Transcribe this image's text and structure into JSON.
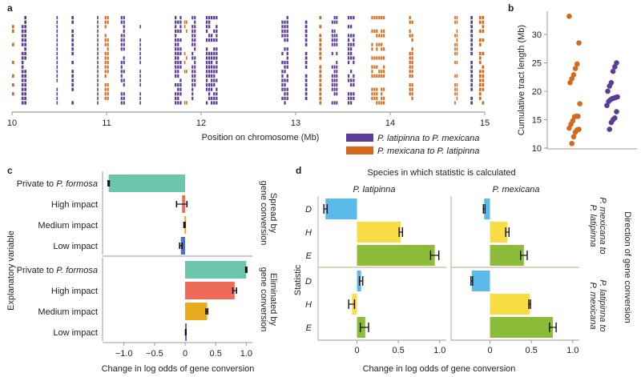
{
  "colors": {
    "purple": "#5b3c97",
    "orange": "#d4691b",
    "axis": "#999999",
    "teal": "#6cc6ae",
    "salmon": "#f06b55",
    "gold": "#e8ab1f",
    "blue": "#4f6fc2",
    "sky": "#5bbbe8",
    "yellow": "#f8dc44",
    "green": "#8dbb3a",
    "frame": "#c8b89a"
  },
  "chart_data": [
    {
      "panel": "a",
      "type": "heatmap",
      "title": "",
      "xlabel": "Position on chromosome (Mb)",
      "ylabel": "",
      "xlim": [
        10,
        15
      ],
      "xticks": [
        "10",
        "11",
        "12",
        "13",
        "14",
        "15"
      ],
      "rows": 20,
      "legend": {
        "placement": "bottom-right",
        "entries": [
          {
            "label": "P. latipinna to P. mexicana",
            "color_key": "purple"
          },
          {
            "label": "P. mexicana to P. latipinna",
            "color_key": "orange"
          }
        ]
      },
      "tracts": [
        {
          "start": 10.0,
          "end": 10.03,
          "dir": "orange",
          "rows": "sparse"
        },
        {
          "start": 10.1,
          "end": 10.16,
          "dir": "purple",
          "rows": "all"
        },
        {
          "start": 10.47,
          "end": 10.49,
          "dir": "purple",
          "rows": "all"
        },
        {
          "start": 10.63,
          "end": 10.66,
          "dir": "purple",
          "rows": "most"
        },
        {
          "start": 10.9,
          "end": 10.92,
          "dir": "purple",
          "rows": "most"
        },
        {
          "start": 10.98,
          "end": 11.03,
          "dir": "orange",
          "rows": "all"
        },
        {
          "start": 11.15,
          "end": 11.2,
          "dir": "purple",
          "rows": "most"
        },
        {
          "start": 11.35,
          "end": 11.37,
          "dir": "purple",
          "rows": "most"
        },
        {
          "start": 11.72,
          "end": 11.8,
          "dir": "purple",
          "rows": "all"
        },
        {
          "start": 11.82,
          "end": 11.86,
          "dir": "orange",
          "rows": "sparse"
        },
        {
          "start": 11.9,
          "end": 11.95,
          "dir": "purple",
          "rows": "all"
        },
        {
          "start": 12.05,
          "end": 12.18,
          "dir": "purple",
          "rows": "most"
        },
        {
          "start": 12.85,
          "end": 12.93,
          "dir": "purple",
          "rows": "all"
        },
        {
          "start": 13.1,
          "end": 13.13,
          "dir": "purple",
          "rows": "most"
        },
        {
          "start": 13.25,
          "end": 13.28,
          "dir": "orange",
          "rows": "most"
        },
        {
          "start": 13.38,
          "end": 13.45,
          "dir": "purple",
          "rows": "most"
        },
        {
          "start": 13.55,
          "end": 13.63,
          "dir": "purple",
          "rows": "most"
        },
        {
          "start": 13.8,
          "end": 13.95,
          "dir": "orange",
          "rows": "most"
        },
        {
          "start": 14.2,
          "end": 14.25,
          "dir": "orange",
          "rows": "most"
        },
        {
          "start": 14.68,
          "end": 14.72,
          "dir": "orange",
          "rows": "most"
        },
        {
          "start": 14.85,
          "end": 14.88,
          "dir": "purple",
          "rows": "most"
        },
        {
          "start": 14.94,
          "end": 15.0,
          "dir": "orange",
          "rows": "most"
        }
      ]
    },
    {
      "panel": "b",
      "type": "scatter",
      "title": "",
      "xlabel": "",
      "ylabel": "Cumulative tract length (Mb)",
      "ylim": [
        10,
        34
      ],
      "yticks": [
        "10",
        "15",
        "20",
        "25",
        "30"
      ],
      "series": [
        {
          "name": "P. mexicana to P. latipinna",
          "color_key": "orange",
          "values": [
            33.2,
            28.5,
            24.8,
            24.0,
            22.9,
            22.2,
            21.5,
            17.8,
            15.6,
            15.6,
            15.5,
            14.8,
            14.2,
            13.5,
            13.3,
            13.2,
            12.8,
            12.0,
            10.8
          ]
        },
        {
          "name": "P. latipinna to P. mexicana",
          "color_key": "purple",
          "values": [
            25.0,
            24.3,
            23.5,
            21.5,
            20.9,
            20.0,
            19.0,
            18.9,
            18.8,
            18.7,
            18.5,
            18.2,
            17.5,
            16.4,
            15.3,
            15.0,
            14.5,
            13.3
          ]
        }
      ]
    },
    {
      "panel": "c",
      "type": "bar",
      "orientation": "horizontal",
      "xlabel": "Change in log odds of gene conversion",
      "ylabel": "Explanatory variable",
      "xlim": [
        -1.35,
        1.1
      ],
      "xticks": [
        "−1.0",
        "−0.5",
        "0",
        "0.5",
        "1.0"
      ],
      "facets": [
        {
          "label": "Spread by gene conversion",
          "categories": [
            "Private to P. formosa",
            "High impact",
            "Medium impact",
            "Low impact"
          ],
          "values": [
            -1.25,
            -0.05,
            -0.01,
            -0.07
          ],
          "err_low": [
            -1.26,
            -0.14,
            -0.02,
            -0.09
          ],
          "err_high": [
            -1.24,
            0.03,
            0.0,
            -0.05
          ],
          "color_keys": [
            "teal",
            "salmon",
            "gold",
            "blue"
          ]
        },
        {
          "label": "Eliminated by gene conversion",
          "categories": [
            "Private to P. formosa",
            "High impact",
            "Medium impact",
            "Low impact"
          ],
          "values": [
            1.0,
            0.81,
            0.36,
            0.01
          ],
          "err_low": [
            0.99,
            0.78,
            0.34,
            0.005
          ],
          "err_high": [
            1.01,
            0.84,
            0.37,
            0.015
          ],
          "color_keys": [
            "teal",
            "salmon",
            "gold",
            "blue"
          ]
        }
      ]
    },
    {
      "panel": "d",
      "type": "bar",
      "orientation": "horizontal",
      "title": "Species in which statistic is calculated",
      "xlabel": "Change in log odds of gene conversion",
      "ylabel": "Statistic",
      "right_label": "Direction of gene conversion",
      "xlim": [
        -0.47,
        1.08
      ],
      "xticks": [
        "0",
        "0.5",
        "1.0"
      ],
      "columns": [
        "P. latipinna",
        "P. mexicana"
      ],
      "rows": [
        "P. mexicana to P. latipinna",
        "P. latipinna to P. mexicana"
      ],
      "categories": [
        "D",
        "H",
        "E"
      ],
      "color_keys": [
        "sky",
        "yellow",
        "green"
      ],
      "cells": [
        {
          "row": 0,
          "col": 0,
          "values": [
            -0.38,
            0.53,
            0.94
          ],
          "err_low": [
            -0.4,
            0.51,
            0.89
          ],
          "err_high": [
            -0.36,
            0.55,
            0.99
          ]
        },
        {
          "row": 0,
          "col": 1,
          "values": [
            -0.07,
            0.21,
            0.41
          ],
          "err_low": [
            -0.08,
            0.19,
            0.37
          ],
          "err_high": [
            -0.06,
            0.23,
            0.45
          ]
        },
        {
          "row": 1,
          "col": 0,
          "values": [
            0.05,
            -0.06,
            0.1
          ],
          "err_low": [
            0.03,
            -0.1,
            0.04
          ],
          "err_high": [
            0.07,
            -0.03,
            0.14
          ]
        },
        {
          "row": 1,
          "col": 1,
          "values": [
            -0.22,
            0.48,
            0.76
          ],
          "err_low": [
            -0.23,
            0.47,
            0.72
          ],
          "err_high": [
            -0.21,
            0.49,
            0.8
          ]
        }
      ]
    }
  ],
  "labels": {
    "a": "a",
    "b": "b",
    "c": "c",
    "d": "d",
    "c_facet1_line1": "Spread by",
    "c_facet1_line2": "gene conversion",
    "c_facet2_line1": "Eliminated by",
    "c_facet2_line2": "gene conversion",
    "d_row1_line1": "P. mexicana to",
    "d_row1_line2": "P. latipinna",
    "d_row2_line1": "P. latipinna to",
    "d_row2_line2": "P. mexicana"
  }
}
